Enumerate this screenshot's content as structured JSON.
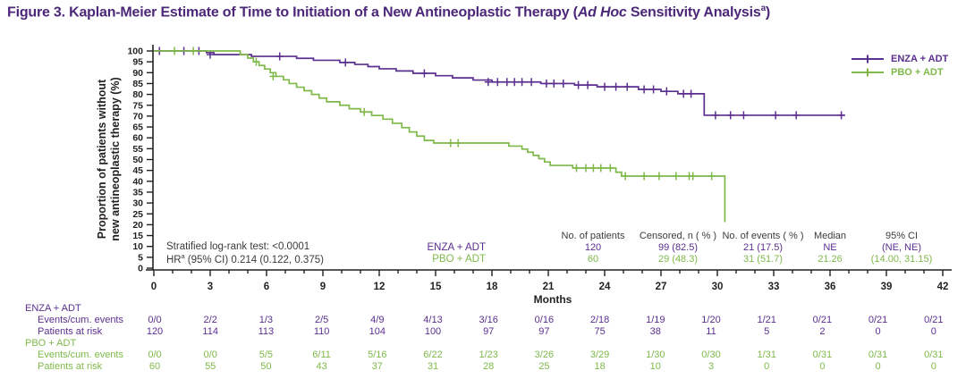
{
  "colors": {
    "purple": "#5B2F8F",
    "green": "#7FB94A",
    "title_purple": "#4C2779",
    "text_dark": "#3B3B3B",
    "axis": "#231F20"
  },
  "title": {
    "prefix": "Figure 3. Kaplan-Meier Estimate of Time to Initiation of a New Antineoplastic Therapy (",
    "italic": "Ad Hoc",
    "suffix": " Sensitivity Analysis",
    "superscript": "a",
    "close": ")"
  },
  "chart_data": {
    "type": "line",
    "subtype": "kaplan-meier-step",
    "x_axis": {
      "label": "Months",
      "min": 0,
      "max": 42,
      "major_tick": 3,
      "minor_tick": 1
    },
    "y_axis": {
      "label_line1": "Proportion of patients without",
      "label_line2": "new antineoplastic therapy (%)",
      "min": 0,
      "max": 100,
      "tick": 5
    },
    "annotations": {
      "logrank": "Stratified log-rank test: <0.0001",
      "hr_label": "HR",
      "hr_sup": "a",
      "hr_value": " (95% CI) 0.214 (0.122, 0.375)"
    },
    "series": [
      {
        "name": "ENZA + ADT",
        "color_key": "purple",
        "steps": [
          [
            0,
            100
          ],
          [
            2.8,
            99.2
          ],
          [
            3.2,
            98.3
          ],
          [
            5.2,
            97.5
          ],
          [
            7.6,
            96.6
          ],
          [
            8.5,
            95.7
          ],
          [
            9.9,
            94.7
          ],
          [
            10.7,
            93.8
          ],
          [
            11.4,
            92.8
          ],
          [
            12.0,
            91.8
          ],
          [
            12.9,
            90.8
          ],
          [
            13.8,
            89.7
          ],
          [
            15.0,
            88.6
          ],
          [
            15.9,
            87.6
          ],
          [
            17.0,
            86.6
          ],
          [
            18.0,
            85.7
          ],
          [
            20.6,
            85.0
          ],
          [
            22.4,
            84.3
          ],
          [
            23.6,
            83.5
          ],
          [
            25.8,
            82.3
          ],
          [
            27.0,
            81.4
          ],
          [
            27.9,
            80.3
          ],
          [
            29.3,
            70.4
          ]
        ],
        "end_month": 36.8,
        "censors": [
          [
            0.3,
            100
          ],
          [
            1.6,
            100
          ],
          [
            2.4,
            100
          ],
          [
            3.0,
            98.3
          ],
          [
            6.7,
            97.5
          ],
          [
            10.2,
            94.7
          ],
          [
            14.4,
            89.7
          ],
          [
            17.8,
            85.7
          ],
          [
            18.3,
            85.7
          ],
          [
            18.8,
            85.7
          ],
          [
            19.2,
            85.7
          ],
          [
            19.6,
            85.7
          ],
          [
            20.1,
            85.7
          ],
          [
            20.9,
            85.0
          ],
          [
            21.3,
            85.0
          ],
          [
            21.8,
            85.0
          ],
          [
            22.6,
            84.3
          ],
          [
            23.1,
            84.3
          ],
          [
            24.0,
            83.5
          ],
          [
            24.6,
            83.5
          ],
          [
            25.2,
            83.5
          ],
          [
            26.1,
            82.3
          ],
          [
            26.6,
            82.3
          ],
          [
            27.3,
            81.4
          ],
          [
            28.2,
            80.3
          ],
          [
            28.6,
            80.3
          ],
          [
            29.9,
            70.4
          ],
          [
            30.7,
            70.4
          ],
          [
            31.4,
            70.4
          ],
          [
            33.1,
            70.4
          ],
          [
            34.2,
            70.4
          ],
          [
            36.6,
            70.4
          ]
        ]
      },
      {
        "name": "PBO + ADT",
        "color_key": "green",
        "steps": [
          [
            0,
            100
          ],
          [
            4.6,
            98.3
          ],
          [
            5.0,
            96.7
          ],
          [
            5.3,
            95.0
          ],
          [
            5.6,
            93.3
          ],
          [
            5.9,
            91.7
          ],
          [
            6.2,
            90.0
          ],
          [
            6.5,
            88.3
          ],
          [
            6.9,
            86.7
          ],
          [
            7.2,
            85.0
          ],
          [
            7.6,
            83.3
          ],
          [
            8.0,
            81.7
          ],
          [
            8.4,
            80.0
          ],
          [
            8.8,
            78.3
          ],
          [
            9.2,
            76.6
          ],
          [
            9.9,
            75.0
          ],
          [
            10.4,
            73.4
          ],
          [
            11.0,
            71.9
          ],
          [
            11.6,
            70.3
          ],
          [
            12.2,
            68.6
          ],
          [
            12.7,
            66.7
          ],
          [
            13.2,
            64.7
          ],
          [
            13.6,
            62.7
          ],
          [
            14.0,
            60.8
          ],
          [
            14.4,
            58.8
          ],
          [
            14.9,
            57.6
          ],
          [
            18.9,
            56.2
          ],
          [
            19.6,
            54.8
          ],
          [
            19.9,
            53.4
          ],
          [
            20.2,
            51.9
          ],
          [
            20.5,
            50.4
          ],
          [
            20.8,
            48.9
          ],
          [
            21.1,
            47.3
          ],
          [
            22.3,
            46.1
          ],
          [
            24.6,
            44.2
          ],
          [
            24.9,
            42.4
          ],
          [
            30.4,
            21.2
          ]
        ],
        "end_month": 30.4,
        "censors": [
          [
            1.1,
            100
          ],
          [
            2.1,
            100
          ],
          [
            5.45,
            95.0
          ],
          [
            6.35,
            88.3
          ],
          [
            11.2,
            71.9
          ],
          [
            15.8,
            57.6
          ],
          [
            16.2,
            57.6
          ],
          [
            22.5,
            46.1
          ],
          [
            23.0,
            46.1
          ],
          [
            23.4,
            46.1
          ],
          [
            23.8,
            46.1
          ],
          [
            24.3,
            46.1
          ],
          [
            25.1,
            42.4
          ],
          [
            26.1,
            42.4
          ],
          [
            26.9,
            42.4
          ],
          [
            27.8,
            42.4
          ],
          [
            28.5,
            42.4
          ],
          [
            28.7,
            42.4
          ],
          [
            29.7,
            42.4
          ]
        ]
      }
    ]
  },
  "legend": {
    "items": [
      {
        "label": "ENZA + ADT",
        "color_key": "purple"
      },
      {
        "label": "PBO + ADT",
        "color_key": "green"
      }
    ]
  },
  "summary_table": {
    "headers": [
      "No. of patients",
      "Censored, n ( % )",
      "No. of events ( % )",
      "Median",
      "95% CI"
    ],
    "rows": [
      {
        "group": "ENZA + ADT",
        "color_key": "purple",
        "values": [
          "120",
          "99 (82.5)",
          "21 (17.5)",
          "NE",
          "(NE, NE)"
        ]
      },
      {
        "group": "PBO + ADT",
        "color_key": "green",
        "values": [
          "60",
          "29 (48.3)",
          "31 (51.7)",
          "21.26",
          "(14.00, 31.15)"
        ]
      }
    ]
  },
  "risk_table": {
    "months": [
      0,
      3,
      6,
      9,
      12,
      15,
      18,
      21,
      24,
      27,
      30,
      33,
      36,
      39,
      42
    ],
    "groups": [
      {
        "name": "ENZA + ADT",
        "color_key": "purple",
        "rows": [
          {
            "label": "Events/cum. events",
            "values": [
              "0/0",
              "2/2",
              "1/3",
              "2/5",
              "4/9",
              "4/13",
              "3/16",
              "0/16",
              "2/18",
              "1/19",
              "1/20",
              "1/21",
              "0/21",
              "0/21",
              "0/21"
            ]
          },
          {
            "label": "Patients at risk",
            "values": [
              "120",
              "114",
              "113",
              "110",
              "104",
              "100",
              "97",
              "97",
              "75",
              "38",
              "11",
              "5",
              "2",
              "0",
              "0"
            ]
          }
        ]
      },
      {
        "name": "PBO + ADT",
        "color_key": "green",
        "rows": [
          {
            "label": "Events/cum. events",
            "values": [
              "0/0",
              "0/0",
              "5/5",
              "6/11",
              "5/16",
              "6/22",
              "1/23",
              "3/26",
              "3/29",
              "1/30",
              "0/30",
              "1/31",
              "0/31",
              "0/31",
              "0/31"
            ]
          },
          {
            "label": "Patients at risk",
            "values": [
              "60",
              "55",
              "50",
              "43",
              "37",
              "31",
              "28",
              "25",
              "18",
              "10",
              "3",
              "0",
              "0",
              "0",
              "0"
            ]
          }
        ]
      }
    ]
  }
}
